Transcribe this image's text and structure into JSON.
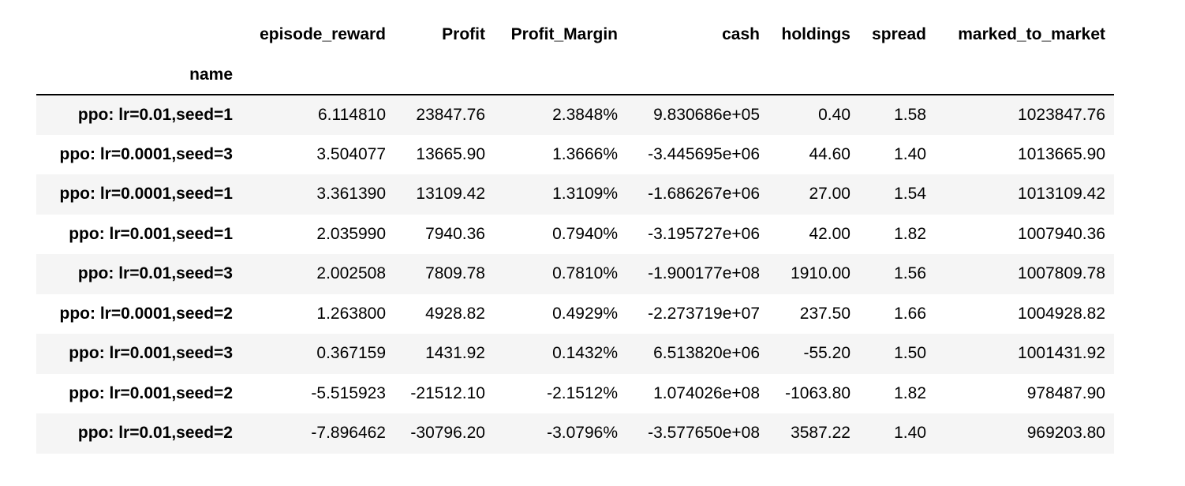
{
  "table": {
    "columns": [
      "episode_reward",
      "Profit",
      "Profit_Margin",
      "cash",
      "holdings",
      "spread",
      "marked_to_market"
    ],
    "index_name": "name",
    "rows": [
      {
        "name": "ppo: lr=0.01,seed=1",
        "values": [
          "6.114810",
          "23847.76",
          "2.3848%",
          "9.830686e+05",
          "0.40",
          "1.58",
          "1023847.76"
        ]
      },
      {
        "name": "ppo: lr=0.0001,seed=3",
        "values": [
          "3.504077",
          "13665.90",
          "1.3666%",
          "-3.445695e+06",
          "44.60",
          "1.40",
          "1013665.90"
        ]
      },
      {
        "name": "ppo: lr=0.0001,seed=1",
        "values": [
          "3.361390",
          "13109.42",
          "1.3109%",
          "-1.686267e+06",
          "27.00",
          "1.54",
          "1013109.42"
        ]
      },
      {
        "name": "ppo: lr=0.001,seed=1",
        "values": [
          "2.035990",
          "7940.36",
          "0.7940%",
          "-3.195727e+06",
          "42.00",
          "1.82",
          "1007940.36"
        ]
      },
      {
        "name": "ppo: lr=0.01,seed=3",
        "values": [
          "2.002508",
          "7809.78",
          "0.7810%",
          "-1.900177e+08",
          "1910.00",
          "1.56",
          "1007809.78"
        ]
      },
      {
        "name": "ppo: lr=0.0001,seed=2",
        "values": [
          "1.263800",
          "4928.82",
          "0.4929%",
          "-2.273719e+07",
          "237.50",
          "1.66",
          "1004928.82"
        ]
      },
      {
        "name": "ppo: lr=0.001,seed=3",
        "values": [
          "0.367159",
          "1431.92",
          "0.1432%",
          "6.513820e+06",
          "-55.20",
          "1.50",
          "1001431.92"
        ]
      },
      {
        "name": "ppo: lr=0.001,seed=2",
        "values": [
          "-5.515923",
          "-21512.10",
          "-2.1512%",
          "1.074026e+08",
          "-1063.80",
          "1.82",
          "978487.90"
        ]
      },
      {
        "name": "ppo: lr=0.01,seed=2",
        "values": [
          "-7.896462",
          "-30796.20",
          "-3.0796%",
          "-3.577650e+08",
          "3587.22",
          "1.40",
          "969203.80"
        ]
      }
    ]
  },
  "colors": {
    "stripe": "#f5f5f5",
    "text": "#000000",
    "rule": "#000000"
  }
}
